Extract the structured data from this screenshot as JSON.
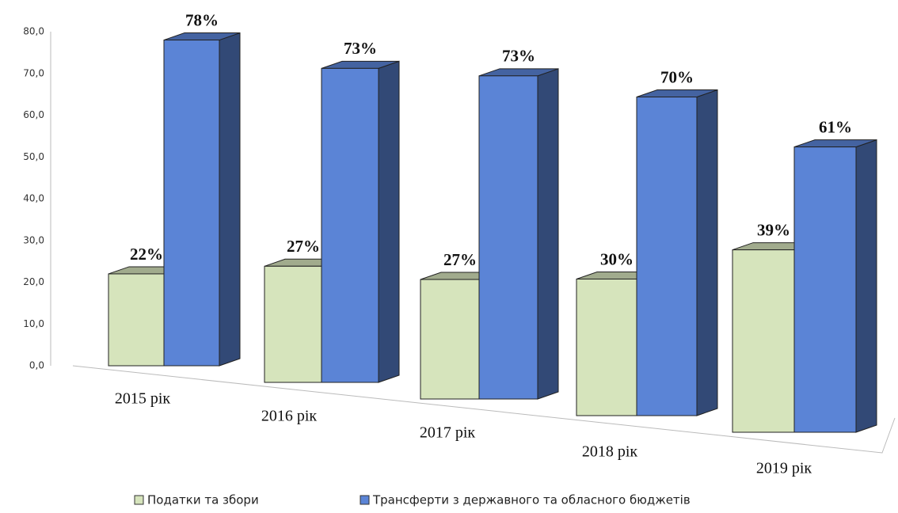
{
  "chart_data": {
    "type": "bar3d",
    "categories": [
      "2015 рік",
      "2016 рік",
      "2017 рік",
      "2018 рік",
      "2019 рік"
    ],
    "series": [
      {
        "name": "Податки та збори",
        "color": "#d6e4bc",
        "values": [
          22,
          27,
          27,
          30,
          39
        ],
        "value_labels": [
          "22%",
          "27%",
          "27%",
          "30%",
          "39%"
        ]
      },
      {
        "name": "Трансферти з державного та обласного бюджетів",
        "color": "#5b84d6",
        "values": [
          78,
          73,
          73,
          70,
          61
        ],
        "value_labels": [
          "78%",
          "73%",
          "73%",
          "70%",
          "61%"
        ]
      }
    ],
    "ylim": [
      0,
      80
    ],
    "yticks": [
      {
        "value": 0,
        "label": "0,0"
      },
      {
        "value": 10,
        "label": "10,0"
      },
      {
        "value": 20,
        "label": "20,0"
      },
      {
        "value": 30,
        "label": "30,0"
      },
      {
        "value": 40,
        "label": "40,0"
      },
      {
        "value": 50,
        "label": "50,0"
      },
      {
        "value": 60,
        "label": "60,0"
      },
      {
        "value": 70,
        "label": "70,0"
      },
      {
        "value": 80,
        "label": "80,0"
      }
    ],
    "legend": "bottom"
  }
}
